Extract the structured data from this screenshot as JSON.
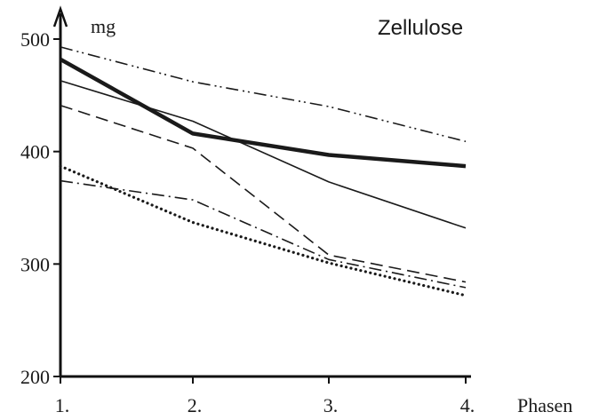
{
  "chart_data": {
    "type": "line",
    "title": "Zellulose",
    "ylabel": "mg",
    "xlabel": "Phasen",
    "categories": [
      "1.",
      "2.",
      "3.",
      "4."
    ],
    "yticks": [
      200,
      300,
      400,
      500
    ],
    "ylim": [
      200,
      500
    ],
    "grid": false,
    "series": [
      {
        "style": "dash-dot-dot",
        "values": [
          493,
          462,
          440,
          409
        ]
      },
      {
        "style": "thick-solid",
        "values": [
          482,
          416,
          397,
          387
        ]
      },
      {
        "style": "thin-solid",
        "values": [
          463,
          427,
          373,
          332
        ]
      },
      {
        "style": "dashed",
        "values": [
          441,
          403,
          308,
          284
        ]
      },
      {
        "style": "dash-dot",
        "values": [
          374,
          357,
          304,
          279
        ]
      },
      {
        "style": "dotted",
        "values": [
          387,
          337,
          301,
          272
        ]
      }
    ]
  }
}
